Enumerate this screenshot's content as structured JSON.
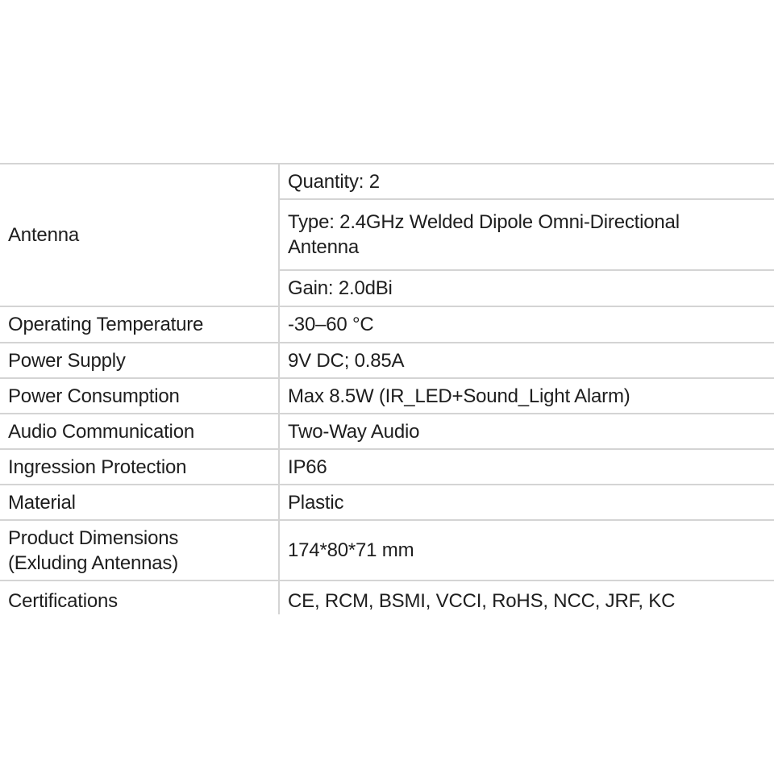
{
  "specs": {
    "antenna": {
      "label": "Antenna",
      "quantity": "Quantity: 2",
      "type": "Type: 2.4GHz Welded Dipole Omni-Directional Antenna",
      "gain": "Gain: 2.0dBi"
    },
    "rows": [
      {
        "label": "Operating Temperature",
        "value": "-30–60 °C"
      },
      {
        "label": "Power Supply",
        "value": "9V DC; 0.85A"
      },
      {
        "label": "Power Consumption",
        "value": "Max 8.5W (IR_LED+Sound_Light Alarm)"
      },
      {
        "label": "Audio Communication",
        "value": "Two-Way Audio"
      },
      {
        "label": "Ingression Protection",
        "value": "IP66"
      },
      {
        "label": "Material",
        "value": "Plastic"
      },
      {
        "label": "Product Dimensions (Exluding Antennas)",
        "value": "174*80*71 mm"
      },
      {
        "label": "Certifications",
        "value": "CE, RCM, BSMI, VCCI, RoHS, NCC, JRF, KC"
      }
    ]
  }
}
